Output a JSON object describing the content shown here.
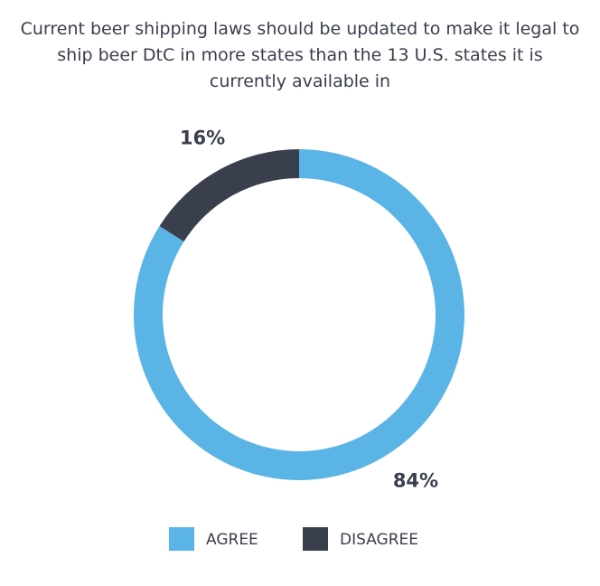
{
  "chart_data": {
    "type": "donut",
    "title": "Current beer shipping laws should be updated to make it legal to ship beer DtC in more states than the 13 U.S. states it is currently available in",
    "categories": [
      "AGREE",
      "DISAGREE"
    ],
    "values": [
      84,
      16
    ],
    "value_labels": [
      "84%",
      "16%"
    ],
    "colors": [
      "#5ab4e5",
      "#3a3f4e"
    ]
  }
}
